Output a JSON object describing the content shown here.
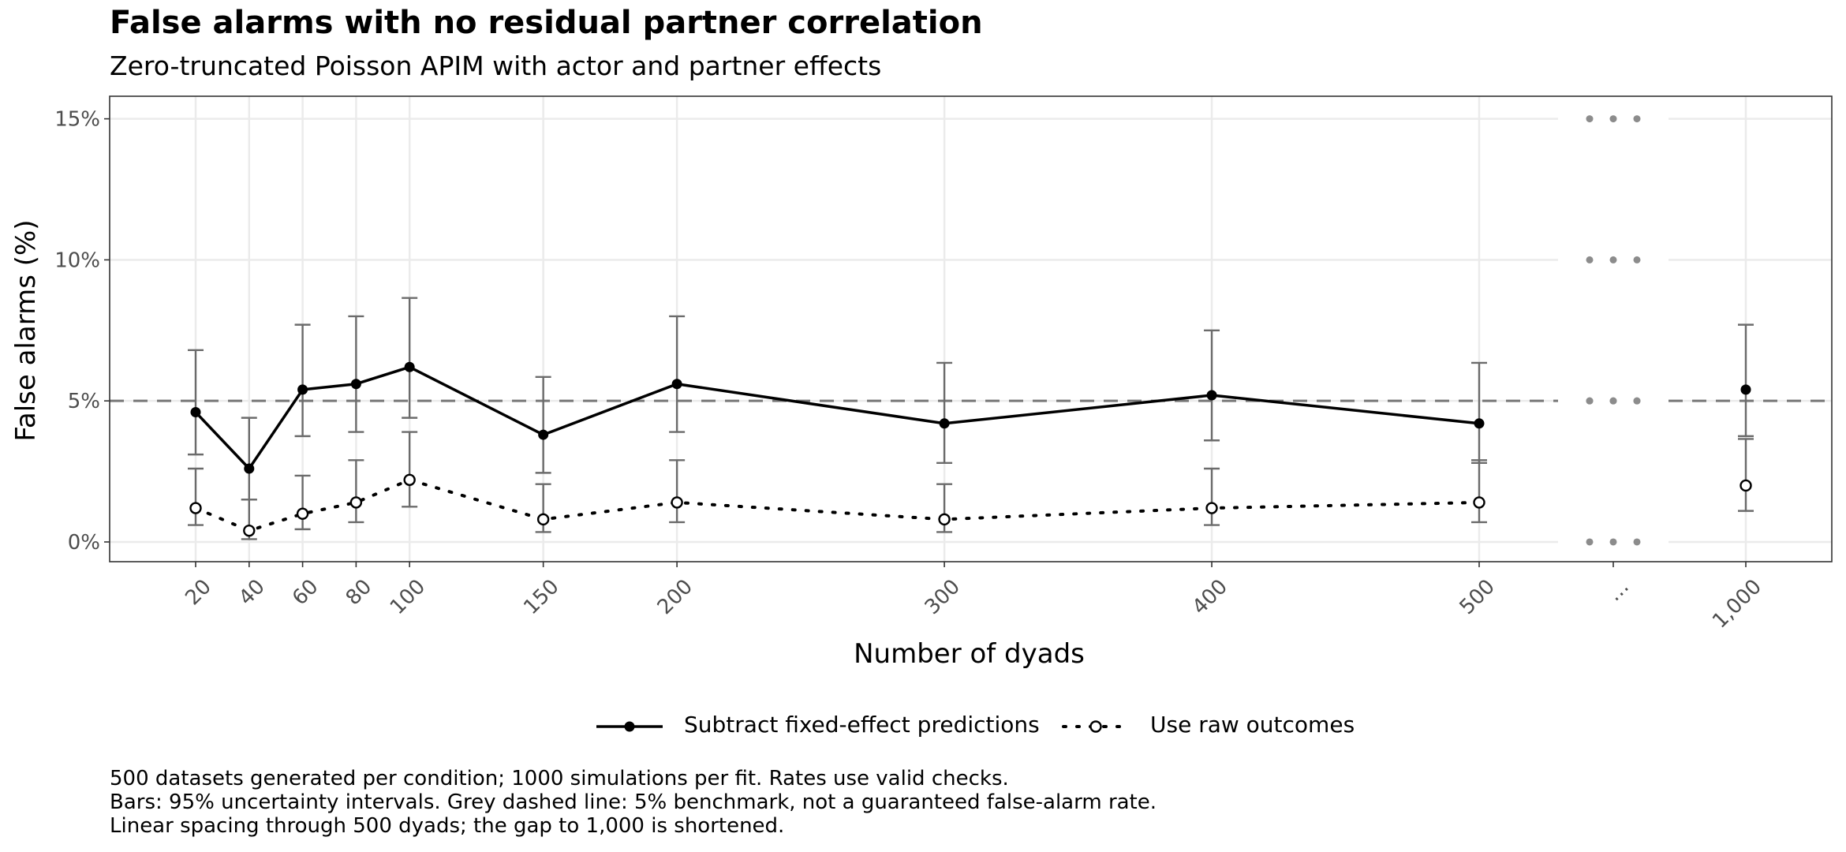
{
  "title": "False alarms with no residual partner correlation",
  "subtitle": "Zero-truncated Poisson APIM with actor and partner effects",
  "caption": [
    "500 datasets generated per condition; 1000 simulations per fit. Rates use valid checks.",
    "Bars: 95% uncertainty intervals. Grey dashed line: 5% benchmark, not a guaranteed false-alarm rate.",
    "Linear spacing through 500 dyads; the gap to 1,000 is shortened."
  ],
  "legend": {
    "position": "bottom",
    "items": [
      {
        "label": "Subtract fixed-effect predictions",
        "line": "solid",
        "marker": "filled-circle"
      },
      {
        "label": "Use raw outcomes",
        "line": "dotted",
        "marker": "open-circle"
      }
    ]
  },
  "colors": {
    "series_line": "#000000",
    "error_bar": "#6b6b6b",
    "benchmark_line": "#777777",
    "grid": "#ebebeb",
    "axis_text": "#4d4d4d",
    "gap_dots": "#8c8c8c"
  },
  "chart_data": {
    "type": "line",
    "title": "False alarms with no residual partner correlation",
    "subtitle": "Zero-truncated Poisson APIM with actor and partner effects",
    "xlabel": "Number of dyads",
    "ylabel": "False alarms (%)",
    "x_tick_labels": [
      "20",
      "40",
      "60",
      "80",
      "100",
      "150",
      "200",
      "300",
      "400",
      "500",
      "…",
      "1,000"
    ],
    "x_break_label": "…",
    "y_tick_labels": [
      "0%",
      "5%",
      "10%",
      "15%"
    ],
    "y_ticks": [
      0,
      5,
      10,
      15
    ],
    "ylim": [
      -0.7,
      15.8
    ],
    "benchmark": 5,
    "grid": true,
    "series": [
      {
        "name": "Subtract fixed-effect predictions",
        "points": [
          {
            "x": 20,
            "y": 4.6,
            "lo": 3.1,
            "hi": 6.8
          },
          {
            "x": 40,
            "y": 2.6,
            "lo": 1.5,
            "hi": 4.4
          },
          {
            "x": 60,
            "y": 5.4,
            "lo": 3.75,
            "hi": 7.7
          },
          {
            "x": 80,
            "y": 5.6,
            "lo": 3.9,
            "hi": 8.0
          },
          {
            "x": 100,
            "y": 6.2,
            "lo": 4.4,
            "hi": 8.65
          },
          {
            "x": 150,
            "y": 3.8,
            "lo": 2.45,
            "hi": 5.85
          },
          {
            "x": 200,
            "y": 5.6,
            "lo": 3.9,
            "hi": 8.0
          },
          {
            "x": 300,
            "y": 4.2,
            "lo": 2.8,
            "hi": 6.35
          },
          {
            "x": 400,
            "y": 5.2,
            "lo": 3.6,
            "hi": 7.5
          },
          {
            "x": 500,
            "y": 4.2,
            "lo": 2.8,
            "hi": 6.35
          },
          {
            "x": 1000,
            "y": 5.4,
            "lo": 3.75,
            "hi": 7.7
          }
        ]
      },
      {
        "name": "Use raw outcomes",
        "points": [
          {
            "x": 20,
            "y": 1.2,
            "lo": 0.6,
            "hi": 2.6
          },
          {
            "x": 40,
            "y": 0.4,
            "lo": 0.1,
            "hi": 1.5
          },
          {
            "x": 60,
            "y": 1.0,
            "lo": 0.45,
            "hi": 2.35
          },
          {
            "x": 80,
            "y": 1.4,
            "lo": 0.7,
            "hi": 2.9
          },
          {
            "x": 100,
            "y": 2.2,
            "lo": 1.25,
            "hi": 3.9
          },
          {
            "x": 150,
            "y": 0.8,
            "lo": 0.35,
            "hi": 2.05
          },
          {
            "x": 200,
            "y": 1.4,
            "lo": 0.7,
            "hi": 2.9
          },
          {
            "x": 300,
            "y": 0.8,
            "lo": 0.35,
            "hi": 2.05
          },
          {
            "x": 400,
            "y": 1.2,
            "lo": 0.6,
            "hi": 2.6
          },
          {
            "x": 500,
            "y": 1.4,
            "lo": 0.7,
            "hi": 2.9
          },
          {
            "x": 1000,
            "y": 2.0,
            "lo": 1.1,
            "hi": 3.65
          }
        ]
      }
    ]
  }
}
